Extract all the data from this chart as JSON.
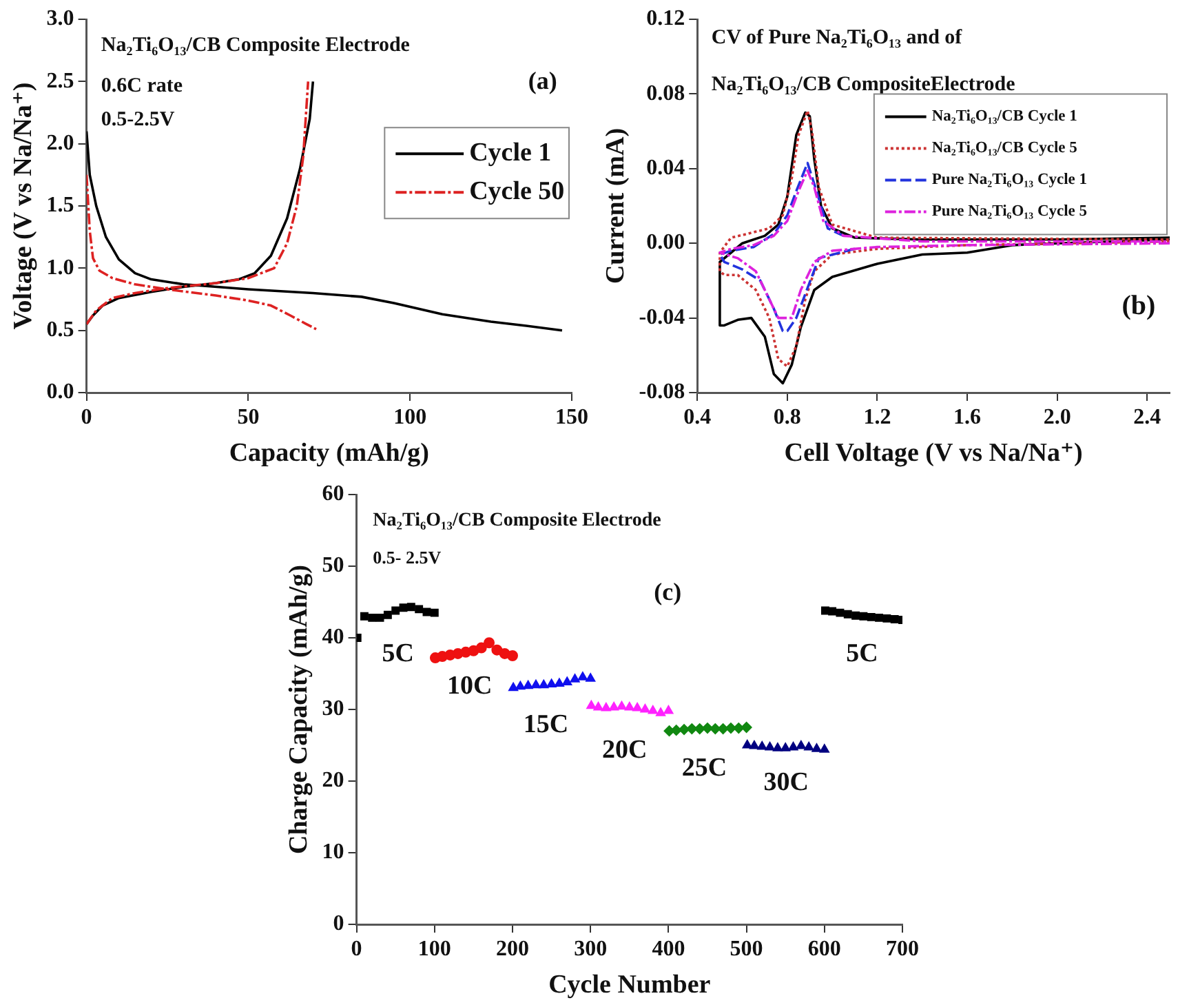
{
  "chart_data": [
    {
      "type": "line",
      "xlabel": "Capacity (mAh/g)",
      "ylabel": "Voltage (V vs Na/Na⁺)",
      "annotations": [
        "Na₂Ti₆O₁₃/CB Composite Electrode",
        "0.6C rate",
        "0.5-2.5V",
        "(a)"
      ],
      "xlim": [
        0,
        150
      ],
      "xticks": [
        0,
        50,
        100,
        150
      ],
      "ylim": [
        0,
        3
      ],
      "yticks": [
        {
          "value": 0,
          "label": "0.0"
        },
        {
          "value": 0.5,
          "label": "0.5"
        },
        {
          "value": 1,
          "label": "1.0"
        },
        {
          "value": 1.5,
          "label": "1.5"
        },
        {
          "value": 2,
          "label": "2.0"
        },
        {
          "value": 2.5,
          "label": "2.5"
        },
        {
          "value": 3,
          "label": "3.0"
        }
      ],
      "legend": "right",
      "marker": "none",
      "series": [
        {
          "name": "Cycle 1",
          "color": "#000000",
          "line_style": "solid",
          "x": [
            0,
            1,
            3,
            6,
            10,
            15,
            20,
            30,
            50,
            70,
            85,
            95,
            110,
            125,
            135,
            147,
            null,
            0,
            2,
            5,
            10,
            20,
            30,
            40,
            47,
            52,
            57,
            62,
            66,
            69,
            70
          ],
          "values": [
            2.1,
            1.75,
            1.5,
            1.25,
            1.07,
            0.96,
            0.91,
            0.87,
            0.83,
            0.8,
            0.77,
            0.72,
            0.63,
            0.57,
            0.54,
            0.5,
            null,
            0.55,
            0.62,
            0.7,
            0.76,
            0.81,
            0.85,
            0.88,
            0.91,
            0.96,
            1.1,
            1.4,
            1.8,
            2.2,
            2.5
          ]
        },
        {
          "name": "Cycle 50",
          "color": "#dd2222",
          "line_style": "dashdot",
          "x": [
            0,
            1,
            2,
            4,
            8,
            15,
            25,
            40,
            50,
            57,
            63,
            68,
            71,
            null,
            0,
            3,
            8,
            15,
            25,
            40,
            50,
            58,
            62,
            65,
            67,
            68,
            68.5
          ],
          "values": [
            1.75,
            1.3,
            1.08,
            0.98,
            0.92,
            0.87,
            0.83,
            0.78,
            0.74,
            0.7,
            0.62,
            0.55,
            0.51,
            null,
            0.55,
            0.66,
            0.76,
            0.8,
            0.84,
            0.88,
            0.92,
            1,
            1.2,
            1.5,
            1.9,
            2.3,
            2.5
          ]
        }
      ]
    },
    {
      "type": "line",
      "xlabel": "Cell Voltage (V vs Na/Na⁺)",
      "ylabel": "Current (mA)",
      "annotations": [
        "CV of Pure Na₂Ti₆O₁₃ and of",
        "Na₂Ti₆O₁₃/CB CompositeElectrode",
        "(b)"
      ],
      "xlim": [
        0.4,
        2.5
      ],
      "xticks": [
        0.4,
        0.8,
        1.2,
        1.6,
        {
          "value": 2,
          "label": "2.0"
        },
        2.4
      ],
      "ylim": [
        -0.08,
        0.12
      ],
      "yticks": [
        -0.08,
        -0.04,
        {
          "value": 0,
          "label": "0.00"
        },
        0.04,
        0.08,
        0.12
      ],
      "legend": "top right",
      "marker": "none",
      "series": [
        {
          "name": "Na₂Ti₆O₁₃/CB Cycle 1",
          "color": "#000000",
          "line_style": "solid",
          "x": [
            2.5,
            2,
            1.8,
            1.6,
            1.4,
            1.2,
            1,
            0.92,
            0.86,
            0.82,
            0.78,
            0.74,
            0.7,
            0.64,
            0.58,
            0.52,
            0.5,
            0.5,
            0.55,
            0.6,
            0.7,
            0.76,
            0.8,
            0.84,
            0.88,
            0.9,
            0.92,
            0.95,
            1,
            1.1,
            1.4,
            2,
            2.5
          ],
          "values": [
            0.002,
            0,
            -0.001,
            -0.005,
            -0.006,
            -0.011,
            -0.018,
            -0.025,
            -0.045,
            -0.065,
            -0.075,
            -0.07,
            -0.05,
            -0.04,
            -0.041,
            -0.044,
            -0.044,
            -0.01,
            -0.005,
            0,
            0.004,
            0.01,
            0.025,
            0.058,
            0.07,
            0.068,
            0.045,
            0.02,
            0.008,
            0.003,
            0.002,
            0.002,
            0.003
          ]
        },
        {
          "name": "Na₂Ti₆O₁₃/CB Cycle 5",
          "color": "#cc3333",
          "line_style": "dotted",
          "x": [
            2.5,
            1.6,
            1.2,
            1,
            0.92,
            0.88,
            0.84,
            0.8,
            0.76,
            0.72,
            0.66,
            0.58,
            0.52,
            0.5,
            0.5,
            0.55,
            0.62,
            0.72,
            0.78,
            0.82,
            0.85,
            0.89,
            0.91,
            0.94,
            1,
            1.2,
            2.5
          ],
          "values": [
            0.001,
            -0.001,
            -0.003,
            -0.006,
            -0.015,
            -0.03,
            -0.055,
            -0.066,
            -0.062,
            -0.04,
            -0.025,
            -0.017,
            -0.017,
            -0.015,
            -0.005,
            0.003,
            0.005,
            0.008,
            0.015,
            0.035,
            0.058,
            0.071,
            0.06,
            0.03,
            0.01,
            0.003,
            0.002
          ]
        },
        {
          "name": "Pure Na₂Ti₆O₁₃ Cycle 1",
          "color": "#2233dd",
          "line_style": "dashed",
          "x": [
            1.1,
            0.94,
            0.84,
            0.8,
            0.78,
            0.74,
            0.68,
            0.6,
            0.52,
            0.5,
            0.55,
            0.65,
            0.74,
            0.8,
            0.84,
            0.89,
            0.93,
            0.98,
            1.05
          ],
          "values": [
            -0.003,
            -0.008,
            -0.04,
            -0.047,
            -0.047,
            -0.035,
            -0.02,
            -0.014,
            -0.01,
            -0.006,
            -0.004,
            -0.002,
            0.005,
            0.015,
            0.028,
            0.043,
            0.028,
            0.008,
            0.004
          ]
        },
        {
          "name": "Pure Na₂Ti₆O₁₃ Cycle 5",
          "color": "#dd22dd",
          "line_style": "dashdot",
          "x": [
            2.5,
            1.6,
            1.2,
            1,
            0.92,
            0.86,
            0.82,
            0.76,
            0.72,
            0.66,
            0.58,
            0.5,
            0.55,
            0.65,
            0.74,
            0.8,
            0.85,
            0.89,
            0.92,
            0.96,
            1.05,
            1.4,
            2.5
          ],
          "values": [
            0,
            -0.001,
            -0.002,
            -0.004,
            -0.01,
            -0.025,
            -0.04,
            -0.04,
            -0.03,
            -0.015,
            -0.008,
            -0.005,
            -0.003,
            -0.001,
            0.004,
            0.012,
            0.028,
            0.039,
            0.03,
            0.012,
            0.004,
            0.001,
            0.001
          ]
        }
      ]
    },
    {
      "type": "scatter",
      "xlabel": "Cycle Number",
      "ylabel": "Charge Capacity (mAh/g)",
      "annotations": [
        "Na₂Ti₆O₁₃/CB Composite Electrode",
        "0.5- 2.5V",
        "(c)",
        "5C",
        "10C",
        "15C",
        "20C",
        "25C",
        "30C",
        "5C"
      ],
      "xlim": [
        0,
        700
      ],
      "xticks": [
        0,
        100,
        200,
        300,
        400,
        500,
        600,
        700
      ],
      "ylim": [
        0,
        60
      ],
      "yticks": [
        0,
        10,
        20,
        30,
        40,
        50,
        60
      ],
      "series": [
        {
          "color": "#000000",
          "marker": "square",
          "x": [
            1,
            10,
            20,
            30,
            40,
            50,
            60,
            70,
            80,
            90,
            100,
            null,
            601,
            610,
            620,
            630,
            640,
            650,
            660,
            670,
            680,
            690,
            700
          ],
          "values": [
            40,
            43,
            42.8,
            42.8,
            43.2,
            43.8,
            44.2,
            44.3,
            44,
            43.6,
            43.5,
            null,
            43.8,
            43.7,
            43.5,
            43.3,
            43.1,
            43,
            42.9,
            42.8,
            42.7,
            42.6,
            42.5
          ]
        },
        {
          "color": "#ee1111",
          "marker": "circle",
          "x": [
            101,
            110,
            120,
            130,
            140,
            150,
            160,
            170,
            180,
            190,
            200
          ],
          "values": [
            37.2,
            37.4,
            37.6,
            37.8,
            38,
            38.2,
            38.6,
            39.3,
            38.3,
            37.8,
            37.5
          ]
        },
        {
          "color": "#1010ee",
          "marker": "triangle",
          "x": [
            201,
            210,
            220,
            230,
            240,
            250,
            260,
            270,
            280,
            290,
            300
          ],
          "values": [
            33,
            33.2,
            33.3,
            33.4,
            33.4,
            33.5,
            33.6,
            33.8,
            34.2,
            34.5,
            34.3
          ]
        },
        {
          "color": "#ff22ff",
          "marker": "triangle",
          "x": [
            301,
            310,
            320,
            330,
            340,
            350,
            360,
            370,
            380,
            390,
            400
          ],
          "values": [
            30.5,
            30.3,
            30.2,
            30.3,
            30.4,
            30.3,
            30.2,
            30,
            29.8,
            29.5,
            29.8
          ]
        },
        {
          "color": "#118811",
          "marker": "diamond",
          "x": [
            401,
            410,
            420,
            430,
            440,
            450,
            460,
            470,
            480,
            490,
            500
          ],
          "values": [
            27,
            27.1,
            27.2,
            27.3,
            27.3,
            27.4,
            27.3,
            27.3,
            27.4,
            27.4,
            27.5
          ]
        },
        {
          "color": "#000080",
          "marker": "triangle",
          "x": [
            501,
            510,
            520,
            530,
            540,
            550,
            560,
            570,
            580,
            590,
            600
          ],
          "values": [
            25,
            24.9,
            24.8,
            24.7,
            24.6,
            24.6,
            24.7,
            24.9,
            24.7,
            24.5,
            24.4
          ]
        }
      ]
    }
  ]
}
